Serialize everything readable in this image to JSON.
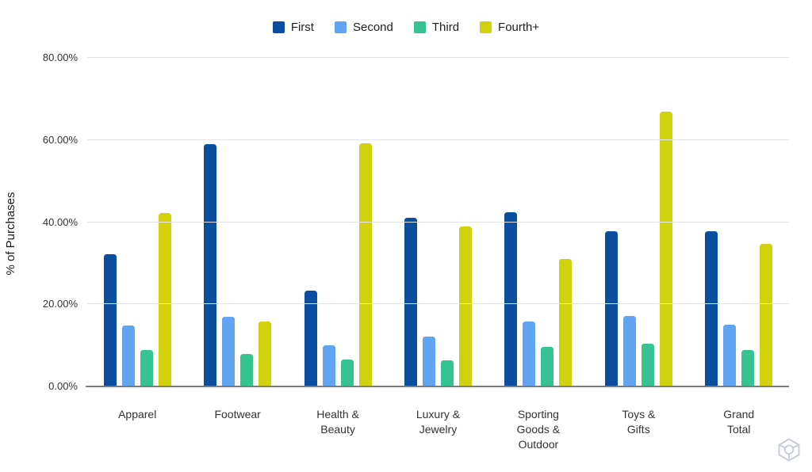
{
  "chart_data": {
    "type": "bar",
    "title": "",
    "xlabel": "",
    "ylabel": "% of Purchases",
    "ylim": [
      0,
      80
    ],
    "grid": true,
    "legend_position": "top",
    "y_ticks": [
      {
        "value": 0,
        "label": "0.00%"
      },
      {
        "value": 20,
        "label": "20.00%"
      },
      {
        "value": 40,
        "label": "40.00%"
      },
      {
        "value": 60,
        "label": "60.00%"
      },
      {
        "value": 80,
        "label": "80.00%"
      }
    ],
    "categories": [
      "Apparel",
      "Footwear",
      "Health &\nBeauty",
      "Luxury &\nJewelry",
      "Sporting\nGoods &\nOutdoor",
      "Toys &\nGifts",
      "Grand\nTotal"
    ],
    "series": [
      {
        "name": "First",
        "color": "#0b4e9f",
        "values": [
          32.2,
          59.0,
          23.4,
          41.0,
          42.4,
          37.8,
          37.8
        ]
      },
      {
        "name": "Second",
        "color": "#61a4f2",
        "values": [
          14.8,
          17.0,
          10.0,
          12.1,
          15.9,
          17.2,
          15.1
        ]
      },
      {
        "name": "Third",
        "color": "#35c392",
        "values": [
          8.8,
          7.9,
          6.5,
          6.3,
          9.6,
          10.4,
          8.9
        ]
      },
      {
        "name": "Fourth+",
        "color": "#d1d20b",
        "values": [
          42.2,
          15.8,
          59.2,
          39.0,
          31.0,
          66.9,
          34.7
        ]
      }
    ]
  },
  "watermark": {
    "icon": "cube-icon",
    "color": "#c6ccdb"
  },
  "colors": {
    "gridline": "#e3e3e3",
    "axis_line": "#7d7d7d",
    "axis_text": "#333333",
    "legend_text": "#202124",
    "background": "#ffffff"
  }
}
